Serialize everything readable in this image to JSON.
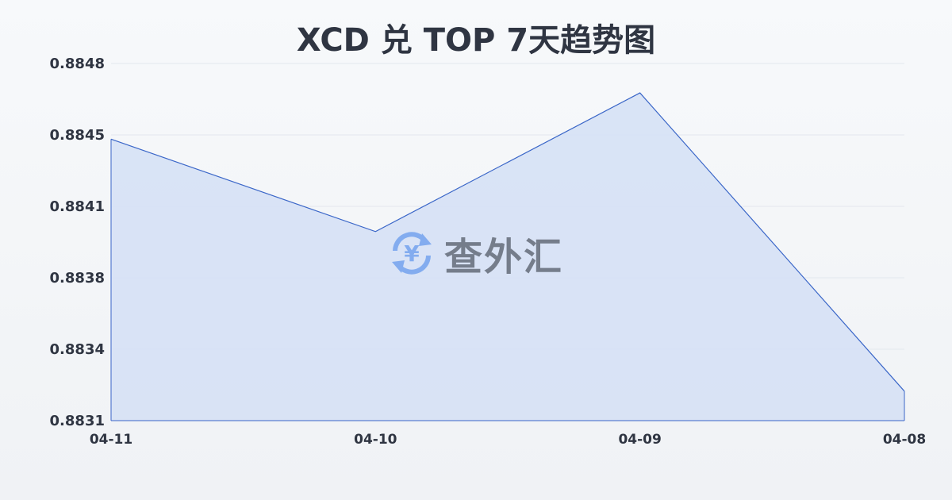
{
  "chart_data": {
    "type": "area",
    "title": "XCD 兑 TOP 7天趋势图",
    "categories": [
      "04-11",
      "04-10",
      "04-09",
      "04-08"
    ],
    "values": [
      0.88444,
      0.884,
      0.88466,
      0.88324
    ],
    "yticks": [
      "0.8848",
      "0.8845",
      "0.8841",
      "0.8838",
      "0.8834",
      "0.8831"
    ],
    "ylim": [
      0.8831,
      0.8848
    ],
    "grid": true,
    "colors": {
      "line": "#3a66c8",
      "fill": "#d6e1f5",
      "grid": "#e3e7ee"
    }
  },
  "watermark": {
    "text": "查外汇",
    "icon": "yen-exchange-icon",
    "color": "#7aa7ef"
  }
}
